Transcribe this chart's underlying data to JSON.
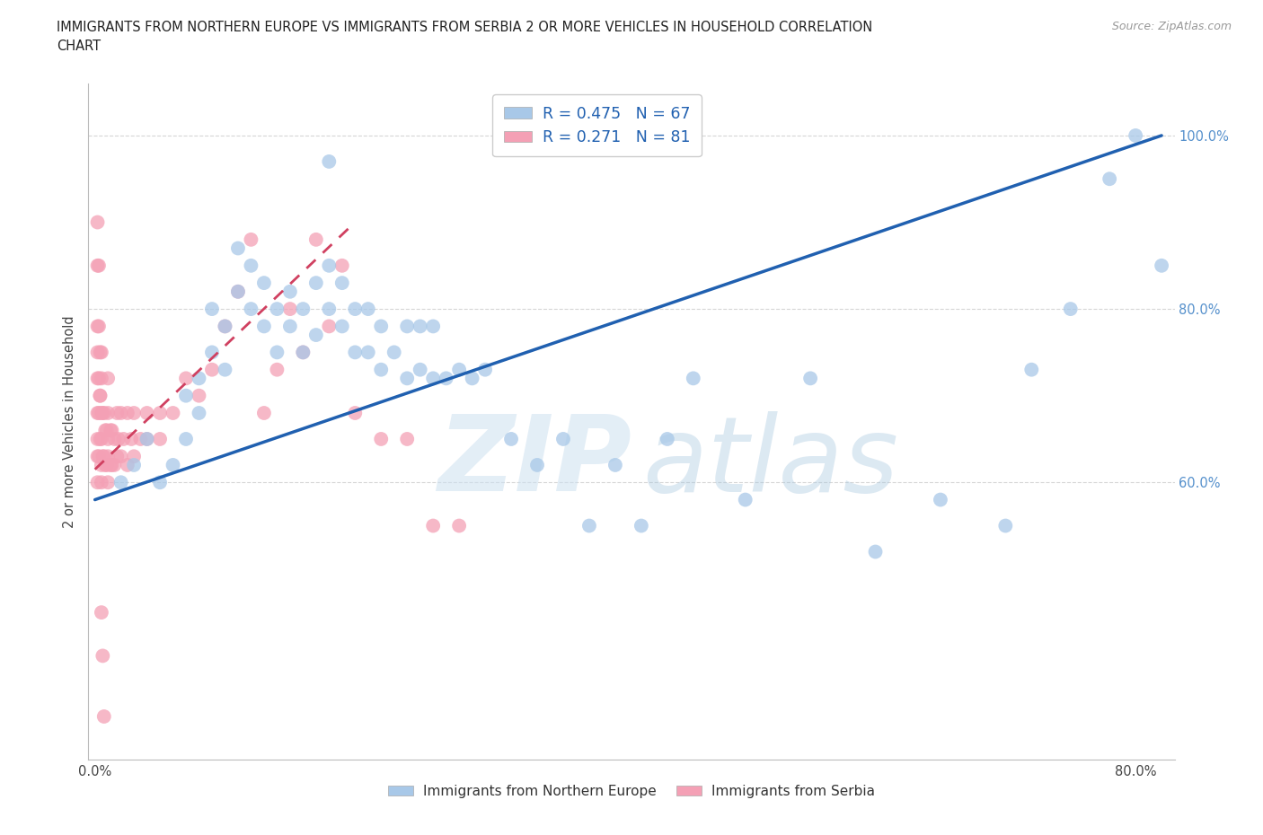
{
  "title_line1": "IMMIGRANTS FROM NORTHERN EUROPE VS IMMIGRANTS FROM SERBIA 2 OR MORE VEHICLES IN HOUSEHOLD CORRELATION",
  "title_line2": "CHART",
  "source": "Source: ZipAtlas.com",
  "ylabel": "2 or more Vehicles in Household",
  "color_blue": "#a8c8e8",
  "color_pink": "#f4a0b5",
  "trendline_blue": "#2060b0",
  "trendline_pink": "#d04060",
  "background": "#ffffff",
  "grid_color": "#cccccc",
  "xlim": [
    0.0,
    0.83
  ],
  "ylim": [
    0.28,
    1.06
  ],
  "y_tick_vals": [
    0.6,
    0.8,
    1.0
  ],
  "y_tick_labels_right": [
    "60.0%",
    "80.0%",
    "100.0%"
  ],
  "x_tick_positions": [
    0.0,
    0.1,
    0.2,
    0.3,
    0.4,
    0.5,
    0.6,
    0.7,
    0.8
  ],
  "x_tick_labels": [
    "0.0%",
    "",
    "",
    "",
    "",
    "",
    "",
    "",
    "80.0%"
  ],
  "watermark_zip": "ZIP",
  "watermark_atlas": "atlas",
  "legend_r1": "R = 0.475",
  "legend_n1": "N = 67",
  "legend_r2": "R = 0.271",
  "legend_n2": "N = 81",
  "legend_r_color": "#2060b0",
  "legend_n_color": "#2060b0",
  "legend_bottom_1": "Immigrants from Northern Europe",
  "legend_bottom_2": "Immigrants from Serbia",
  "blue_x": [
    0.02,
    0.03,
    0.04,
    0.05,
    0.06,
    0.07,
    0.07,
    0.08,
    0.08,
    0.09,
    0.09,
    0.1,
    0.1,
    0.11,
    0.11,
    0.12,
    0.12,
    0.13,
    0.13,
    0.14,
    0.14,
    0.15,
    0.15,
    0.16,
    0.16,
    0.17,
    0.17,
    0.18,
    0.18,
    0.19,
    0.19,
    0.2,
    0.2,
    0.21,
    0.21,
    0.22,
    0.22,
    0.23,
    0.24,
    0.24,
    0.25,
    0.25,
    0.26,
    0.26,
    0.27,
    0.28,
    0.29,
    0.3,
    0.32,
    0.34,
    0.36,
    0.38,
    0.4,
    0.42,
    0.44,
    0.46,
    0.5,
    0.55,
    0.6,
    0.65,
    0.7,
    0.72,
    0.75,
    0.78,
    0.8,
    0.82,
    0.18
  ],
  "blue_y": [
    0.6,
    0.62,
    0.65,
    0.6,
    0.62,
    0.65,
    0.7,
    0.68,
    0.72,
    0.75,
    0.8,
    0.73,
    0.78,
    0.82,
    0.87,
    0.8,
    0.85,
    0.78,
    0.83,
    0.75,
    0.8,
    0.78,
    0.82,
    0.75,
    0.8,
    0.77,
    0.83,
    0.8,
    0.85,
    0.78,
    0.83,
    0.75,
    0.8,
    0.75,
    0.8,
    0.73,
    0.78,
    0.75,
    0.72,
    0.78,
    0.73,
    0.78,
    0.72,
    0.78,
    0.72,
    0.73,
    0.72,
    0.73,
    0.65,
    0.62,
    0.65,
    0.55,
    0.62,
    0.55,
    0.65,
    0.72,
    0.58,
    0.72,
    0.52,
    0.58,
    0.55,
    0.73,
    0.8,
    0.95,
    1.0,
    0.85,
    0.97
  ],
  "pink_x": [
    0.002,
    0.002,
    0.002,
    0.002,
    0.002,
    0.002,
    0.002,
    0.003,
    0.003,
    0.003,
    0.004,
    0.004,
    0.005,
    0.005,
    0.005,
    0.005,
    0.005,
    0.005,
    0.006,
    0.006,
    0.007,
    0.007,
    0.008,
    0.008,
    0.009,
    0.009,
    0.01,
    0.01,
    0.01,
    0.01,
    0.01,
    0.012,
    0.012,
    0.013,
    0.013,
    0.015,
    0.015,
    0.017,
    0.017,
    0.018,
    0.02,
    0.02,
    0.022,
    0.025,
    0.025,
    0.028,
    0.03,
    0.03,
    0.035,
    0.04,
    0.04,
    0.05,
    0.05,
    0.06,
    0.07,
    0.08,
    0.09,
    0.1,
    0.11,
    0.12,
    0.13,
    0.14,
    0.15,
    0.16,
    0.17,
    0.18,
    0.19,
    0.2,
    0.22,
    0.24,
    0.26,
    0.28,
    0.002,
    0.002,
    0.003,
    0.003,
    0.004,
    0.004,
    0.005,
    0.006,
    0.007
  ],
  "pink_y": [
    0.6,
    0.63,
    0.65,
    0.68,
    0.72,
    0.75,
    0.78,
    0.63,
    0.68,
    0.72,
    0.65,
    0.7,
    0.6,
    0.62,
    0.65,
    0.68,
    0.72,
    0.75,
    0.63,
    0.68,
    0.63,
    0.68,
    0.62,
    0.66,
    0.62,
    0.66,
    0.6,
    0.63,
    0.65,
    0.68,
    0.72,
    0.62,
    0.66,
    0.62,
    0.66,
    0.62,
    0.65,
    0.63,
    0.68,
    0.65,
    0.63,
    0.68,
    0.65,
    0.62,
    0.68,
    0.65,
    0.63,
    0.68,
    0.65,
    0.65,
    0.68,
    0.65,
    0.68,
    0.68,
    0.72,
    0.7,
    0.73,
    0.78,
    0.82,
    0.88,
    0.68,
    0.73,
    0.8,
    0.75,
    0.88,
    0.78,
    0.85,
    0.68,
    0.65,
    0.65,
    0.55,
    0.55,
    0.85,
    0.9,
    0.85,
    0.78,
    0.75,
    0.7,
    0.45,
    0.4,
    0.33
  ],
  "trendline_blue_x0": 0.0,
  "trendline_blue_x1": 0.82,
  "trendline_blue_y0": 0.58,
  "trendline_blue_y1": 1.0,
  "trendline_pink_x0": 0.0,
  "trendline_pink_x1": 0.2,
  "trendline_pink_y0": 0.615,
  "trendline_pink_y1": 0.9
}
